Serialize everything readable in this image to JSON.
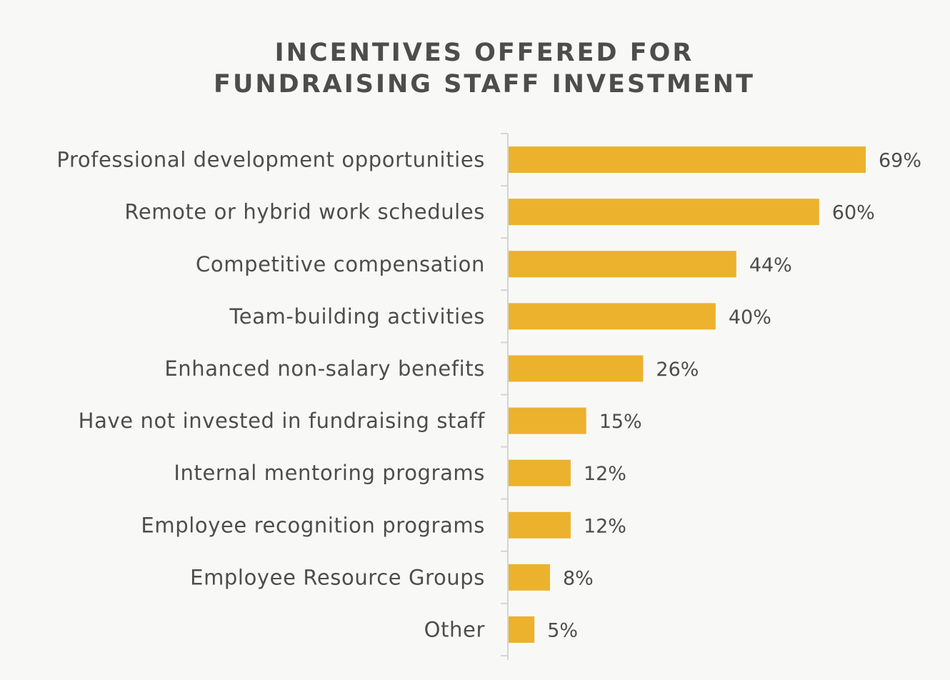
{
  "chart_data": {
    "type": "bar",
    "orientation": "horizontal",
    "title_lines": [
      "INCENTIVES OFFERED FOR",
      "FUNDRAISING STAFF INVESTMENT"
    ],
    "categories": [
      "Professional development opportunities",
      "Remote or hybrid work schedules",
      "Competitive compensation",
      "Team-building activities",
      "Enhanced non-salary benefits",
      "Have not invested in fundraising staff",
      "Internal mentoring programs",
      "Employee recognition programs",
      "Employee Resource Groups",
      "Other"
    ],
    "values": [
      69,
      60,
      44,
      40,
      26,
      15,
      12,
      12,
      8,
      5
    ],
    "value_labels": [
      "69%",
      "60%",
      "44%",
      "40%",
      "26%",
      "15%",
      "12%",
      "12%",
      "8%",
      "5%"
    ],
    "unit": "%",
    "bar_color": "#ecb22e",
    "axis_color": "#d4d4d4",
    "grid": false,
    "legend": "none"
  }
}
